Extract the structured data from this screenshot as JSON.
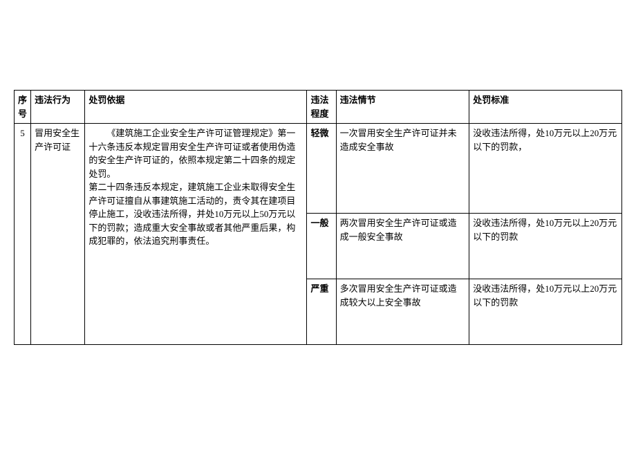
{
  "table": {
    "headers": {
      "seq": "序号",
      "behavior": "违法行为",
      "basis": "处罚依据",
      "severity": "违法程度",
      "detail": "违法情节",
      "standard": "处罚标准"
    },
    "row": {
      "seq": "5",
      "behavior": " 冒用安全生产许可证",
      "basis_p1": "《建筑施工企业安全生产许可证管理规定》第一十六条违反本规定冒用安全生产许可证或者使用伪造的安全生产许可证的，依照本规定第二十四条的规定处罚。",
      "basis_p2": "第二十四条违反本规定，建筑施工企业未取得安全生产许可证擅自从事建筑施工活动的，责令其在建项目停止施工，没收违法所得，并处10万元以上50万元以下的罚款；造成重大安全事故或者其他严重后果，构成犯罪的，依法追究刑事责任。",
      "levels": [
        {
          "severity": "轻微",
          "detail": "一次冒用安全生产许可证并未造成安全事故",
          "standard": "没收违法所得，处10万元以上20万元以下的罚款，"
        },
        {
          "severity": "一般",
          "detail": "两次冒用安全生产许可证或造成一般安全事故",
          "standard": "没收违法所得，处10万元以上20万元以下的罚款"
        },
        {
          "severity": "严重",
          "detail": "多次冒用安全生产许可证或造成较大以上安全事故",
          "standard": "没收违法所得，处10万元以上20万元以下的罚款"
        }
      ]
    }
  }
}
